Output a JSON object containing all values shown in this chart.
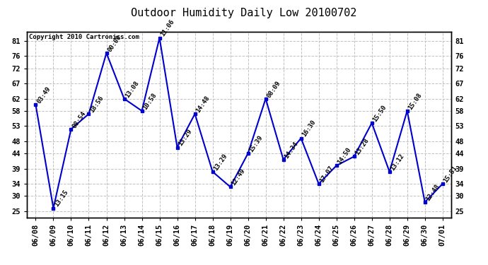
{
  "title": "Outdoor Humidity Daily Low 20100702",
  "copyright": "Copyright 2010 Cartronics.com",
  "x_labels": [
    "06/08",
    "06/09",
    "06/10",
    "06/11",
    "06/12",
    "06/13",
    "06/14",
    "06/15",
    "06/16",
    "06/17",
    "06/18",
    "06/19",
    "06/20",
    "06/21",
    "06/22",
    "06/23",
    "06/24",
    "06/25",
    "06/26",
    "06/27",
    "06/28",
    "06/29",
    "06/30",
    "07/01"
  ],
  "y_values": [
    60,
    26,
    52,
    57,
    77,
    62,
    58,
    82,
    46,
    57,
    38,
    33,
    44,
    62,
    42,
    49,
    34,
    40,
    43,
    54,
    38,
    58,
    28,
    34
  ],
  "time_labels": [
    "03:49",
    "13:15",
    "08:54",
    "18:56",
    "00:00",
    "13:08",
    "10:58",
    "11:06",
    "13:29",
    "14:48",
    "13:29",
    "12:49",
    "15:39",
    "08:09",
    "14:34",
    "16:30",
    "17:07",
    "14:50",
    "13:28",
    "15:50",
    "13:12",
    "15:08",
    "12:48",
    "15:51"
  ],
  "ylim": [
    23,
    84
  ],
  "yticks": [
    25,
    30,
    34,
    39,
    44,
    48,
    53,
    58,
    62,
    67,
    72,
    76,
    81
  ],
  "line_color": "#0000CC",
  "marker_color": "#0000CC",
  "bg_color": "#ffffff",
  "plot_bg_color": "#ffffff",
  "grid_color": "#bbbbbb",
  "title_fontsize": 11,
  "copyright_fontsize": 6.5,
  "label_fontsize": 6.5,
  "tick_fontsize": 7.5
}
